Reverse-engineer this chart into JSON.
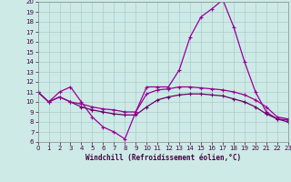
{
  "xlabel": "Windchill (Refroidissement éolien,°C)",
  "bg_color": "#cdeae6",
  "grid_color": "#aacccc",
  "line_color": "#990099",
  "xmin": 0,
  "xmax": 23,
  "ymin": 6,
  "ymax": 20,
  "yticks": [
    6,
    7,
    8,
    9,
    10,
    11,
    12,
    13,
    14,
    15,
    16,
    17,
    18,
    19,
    20
  ],
  "xticks": [
    0,
    1,
    2,
    3,
    4,
    5,
    6,
    7,
    8,
    9,
    10,
    11,
    12,
    13,
    14,
    15,
    16,
    17,
    18,
    19,
    20,
    21,
    22,
    23
  ],
  "line1_x": [
    0,
    1,
    2,
    3,
    4,
    5,
    6,
    7,
    8,
    9,
    10,
    11,
    12,
    13,
    14,
    15,
    16,
    17,
    18,
    19,
    20,
    21,
    22,
    23
  ],
  "line1_y": [
    11,
    10,
    11,
    11.5,
    10,
    8.5,
    7.5,
    7,
    6.3,
    9.0,
    11.5,
    11.5,
    11.5,
    13.2,
    16.5,
    18.5,
    19.3,
    20.2,
    17.5,
    14.0,
    11,
    9.0,
    8.3,
    8.2
  ],
  "line2_x": [
    0,
    1,
    2,
    3,
    4,
    5,
    6,
    7,
    8,
    9,
    10,
    11,
    12,
    13,
    14,
    15,
    16,
    17,
    18,
    19,
    20,
    21,
    22,
    23
  ],
  "line2_y": [
    11,
    10,
    10.5,
    10,
    9.5,
    9.2,
    9.0,
    8.8,
    8.7,
    8.7,
    9.5,
    10.2,
    10.5,
    10.7,
    10.8,
    10.8,
    10.7,
    10.6,
    10.3,
    10.0,
    9.5,
    8.8,
    8.3,
    8.0
  ],
  "line3_x": [
    0,
    1,
    2,
    3,
    4,
    5,
    6,
    7,
    8,
    9,
    10,
    11,
    12,
    13,
    14,
    15,
    16,
    17,
    18,
    19,
    20,
    21,
    22,
    23
  ],
  "line3_y": [
    11,
    10,
    10.5,
    10,
    9.8,
    9.5,
    9.3,
    9.2,
    9.0,
    9.0,
    10.8,
    11.2,
    11.3,
    11.5,
    11.5,
    11.4,
    11.3,
    11.2,
    11.0,
    10.7,
    10.2,
    9.5,
    8.5,
    8.3
  ]
}
